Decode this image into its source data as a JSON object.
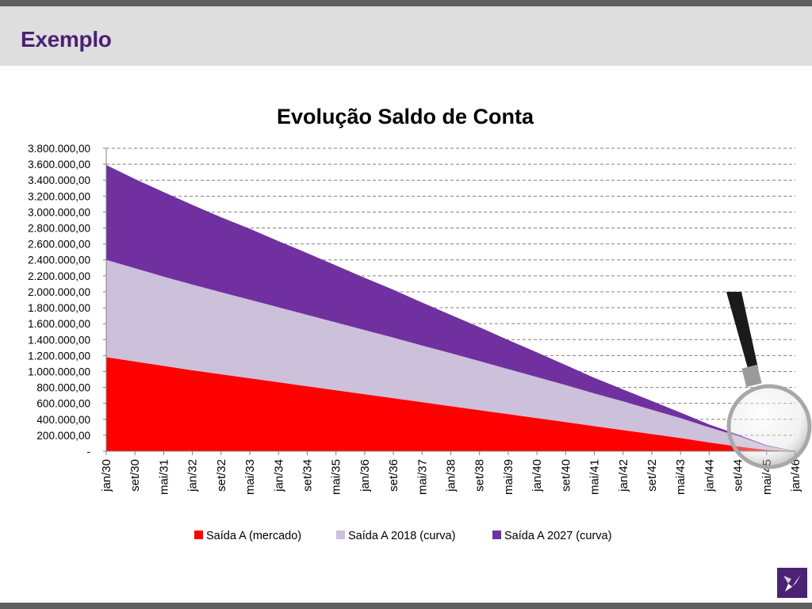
{
  "slide": {
    "title": "Exemplo"
  },
  "colors": {
    "header_bg": "#dedede",
    "bar": "#5f5f5f",
    "title": "#4b2173"
  },
  "icons": {
    "logo": "company-logo-icon",
    "magnifier": "magnifying-glass-icon"
  },
  "chart_data": {
    "type": "area",
    "stacked": true,
    "title": "Evolução Saldo de Conta",
    "xlabel": "",
    "ylabel": "",
    "ylim": [
      0,
      3800000
    ],
    "yticks": [
      0,
      200000,
      400000,
      600000,
      800000,
      1000000,
      1200000,
      1400000,
      1600000,
      1800000,
      2000000,
      2200000,
      2400000,
      2600000,
      2800000,
      3000000,
      3200000,
      3400000,
      3600000,
      3800000
    ],
    "ytick_labels": [
      "-",
      "200.000,00",
      "400.000,00",
      "600.000,00",
      "800.000,00",
      "1.000.000,00",
      "1.200.000,00",
      "1.400.000,00",
      "1.600.000,00",
      "1.800.000,00",
      "2.000.000,00",
      "2.200.000,00",
      "2.400.000,00",
      "2.600.000,00",
      "2.800.000,00",
      "3.000.000,00",
      "3.200.000,00",
      "3.400.000,00",
      "3.600.000,00",
      "3.800.000,00"
    ],
    "categories": [
      "jan/30",
      "set/30",
      "mai/31",
      "jan/32",
      "set/32",
      "mai/33",
      "jan/34",
      "set/34",
      "mai/35",
      "jan/36",
      "set/36",
      "mai/37",
      "jan/38",
      "set/38",
      "mai/39",
      "jan/40",
      "set/40",
      "mai/41",
      "jan/42",
      "set/42",
      "mai/43",
      "jan/44",
      "set/44",
      "mai/45",
      "jan/46"
    ],
    "series": [
      {
        "name": "Saída A (mercado)",
        "color": "#ff0000",
        "values": [
          1180000,
          1125000,
          1070000,
          1015000,
          965000,
          915000,
          865000,
          815000,
          765000,
          715000,
          665000,
          615000,
          565000,
          515000,
          465000,
          415000,
          365000,
          315000,
          265000,
          215000,
          165000,
          110000,
          60000,
          15000,
          0
        ]
      },
      {
        "name": "Saída A 2018 (curva)",
        "color": "#ccc0da",
        "values": [
          1220000,
          1170000,
          1120000,
          1075000,
          1030000,
          985000,
          940000,
          895000,
          850000,
          805000,
          760000,
          710000,
          665000,
          615000,
          565000,
          515000,
          465000,
          410000,
          360000,
          305000,
          250000,
          190000,
          130000,
          50000,
          0
        ]
      },
      {
        "name": "Saída A 2027 (curva)",
        "color": "#7030a0",
        "values": [
          1190000,
          1120000,
          1060000,
          1000000,
          940000,
          890000,
          830000,
          775000,
          715000,
          655000,
          600000,
          540000,
          480000,
          425000,
          365000,
          310000,
          250000,
          195000,
          150000,
          110000,
          70000,
          35000,
          20000,
          10000,
          0
        ]
      }
    ],
    "legend_position": "bottom",
    "grid": true
  }
}
